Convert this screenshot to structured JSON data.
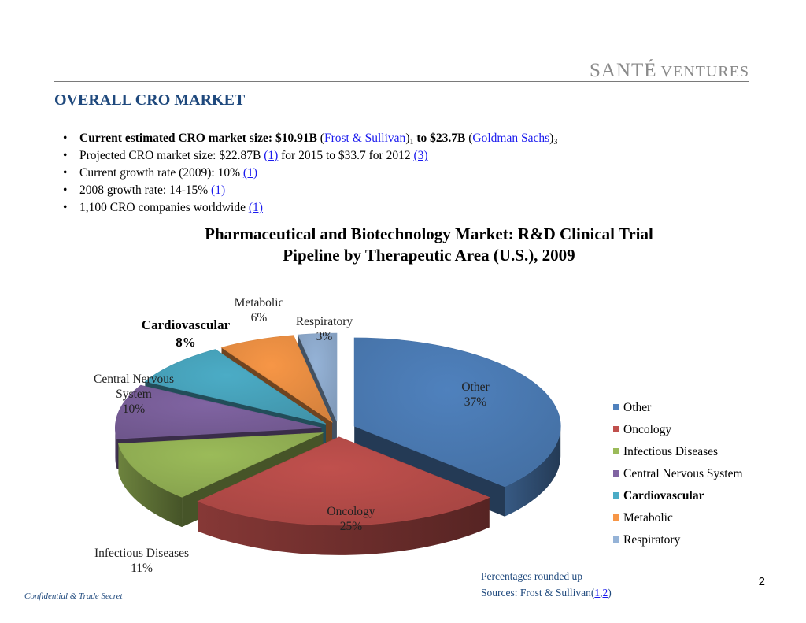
{
  "logo": {
    "first": "SANTÉ",
    "second": "VENTURES"
  },
  "page_title": "OVERALL CRO MARKET",
  "bullets": {
    "b1": {
      "prefix": "Current estimated CRO market size: $10.91B",
      "source1": "Frost & Sullivan",
      "sub1": "1",
      "middle": "to $23.7B",
      "source2": "Goldman Sachs",
      "sub2": "3"
    },
    "b2": {
      "text": "Projected CRO market size: $22.87B",
      "ref1": "(1)",
      "middle": "for 2015 to $33.7 for 2012",
      "ref2": "(3)"
    },
    "b3": {
      "text": "Current growth rate (2009): 10%",
      "ref": "(1)"
    },
    "b4": {
      "text": "2008 growth rate: 14-15%",
      "ref": "(1)"
    },
    "b5": {
      "text": "1,100 CRO companies worldwide",
      "ref": "(1)"
    }
  },
  "chart_data": {
    "type": "pie",
    "title_line1": "Pharmaceutical and Biotechnology Market: R&D Clinical Trial",
    "title_line2": "Pipeline by Therapeutic Area (U.S.), 2009",
    "three_d": true,
    "exploded": true,
    "legend_position": "right",
    "slices": [
      {
        "label": "Other",
        "value": 37,
        "display": "37%",
        "color": "#4f81bd"
      },
      {
        "label": "Oncology",
        "value": 25,
        "display": "25%",
        "color": "#c0504d"
      },
      {
        "label": "Infectious Diseases",
        "value": 11,
        "display": "11%",
        "color": "#9bbb59"
      },
      {
        "label": "Central Nervous System",
        "value": 10,
        "display": "10%",
        "color": "#8064a2"
      },
      {
        "label": "Cardiovascular",
        "value": 8,
        "display": "8%",
        "color": "#4bacc6",
        "emphasized": true
      },
      {
        "label": "Metabolic",
        "value": 6,
        "display": "6%",
        "color": "#f79646"
      },
      {
        "label": "Respiratory",
        "value": 3,
        "display": "3%",
        "color": "#95b3d7"
      }
    ],
    "labels_text": {
      "other": [
        "Other",
        "37%"
      ],
      "oncology": [
        "Oncology",
        "25%"
      ],
      "infectious": [
        "Infectious Diseases",
        "11%"
      ],
      "cns": [
        "Central Nervous",
        "System",
        "10%"
      ],
      "cardio": [
        "Cardiovascular",
        "8%"
      ],
      "metabolic": [
        "Metabolic",
        "6%"
      ],
      "respiratory": [
        "Respiratory",
        "3%"
      ]
    }
  },
  "footnote": {
    "line1": "Percentages rounded up",
    "line2_prefix": "Sources: Frost & Sullivan(",
    "ref1": "1",
    "sep": ",",
    "ref2": "2",
    "line2_suffix": ")"
  },
  "confidential": "Confidential & Trade Secret",
  "page_number": "2"
}
